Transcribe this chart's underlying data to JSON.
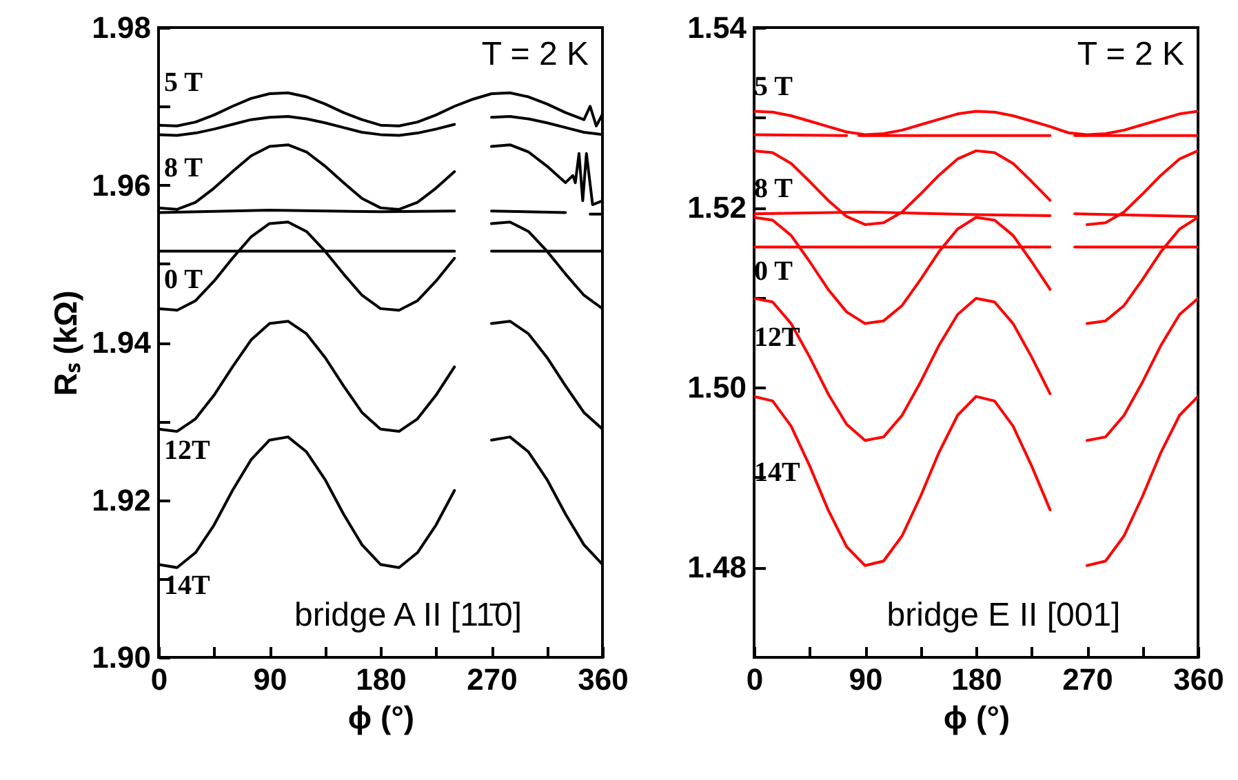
{
  "chart_data": [
    {
      "type": "line",
      "xlabel": "ϕ (°)",
      "ylabel": "Rₛ (kΩ)",
      "xlim": [
        0,
        360
      ],
      "ylim": [
        1.9,
        1.98
      ],
      "xticks": [
        0,
        {
          "value": 45,
          "label": null
        },
        90,
        {
          "value": 135,
          "label": null
        },
        180,
        {
          "value": 225,
          "label": null
        },
        270,
        {
          "value": 315,
          "label": null
        },
        360
      ],
      "yticks": [
        {
          "value": 1.9,
          "label": "1.90"
        },
        {
          "value": 1.91,
          "label": null
        },
        {
          "value": 1.92,
          "label": "1.92"
        },
        {
          "value": 1.93,
          "label": null
        },
        {
          "value": 1.94,
          "label": "1.94"
        },
        {
          "value": 1.95,
          "label": null
        },
        {
          "value": 1.96,
          "label": "1.96"
        },
        {
          "value": 1.97,
          "label": null
        },
        {
          "value": 1.98,
          "label": "1.98"
        }
      ],
      "x": [
        0,
        15,
        30,
        45,
        60,
        75,
        90,
        105,
        120,
        135,
        150,
        165,
        180,
        195,
        210,
        225,
        240,
        255,
        270,
        285,
        300,
        315,
        330,
        345,
        360
      ],
      "series": [
        {
          "color": "#000000",
          "x": [
            0,
            15,
            30,
            45,
            60,
            75,
            90,
            105,
            120,
            135,
            150,
            165,
            180,
            195,
            210,
            225,
            240,
            255,
            270,
            285,
            300,
            315,
            330,
            345,
            350,
            355,
            360
          ],
          "values": [
            1.9676,
            1.9675,
            1.968,
            1.9689,
            1.97,
            1.971,
            1.9716,
            1.9717,
            1.9712,
            1.9703,
            1.9692,
            1.9683,
            1.9676,
            1.9675,
            1.968,
            1.9689,
            1.97,
            1.9709,
            1.9716,
            1.9717,
            1.9712,
            1.9703,
            1.9692,
            1.9683,
            1.97,
            1.9675,
            1.969
          ]
        },
        {
          "color": "#000000",
          "values": [
            1.9664,
            1.9663,
            1.9666,
            1.9671,
            1.9677,
            1.9683,
            1.9686,
            1.9687,
            1.9684,
            1.9679,
            1.9673,
            1.9667,
            1.9664,
            1.9663,
            1.9666,
            1.9671,
            1.9677,
            null,
            1.9686,
            1.9687,
            1.9684,
            1.9679,
            1.9673,
            1.9667,
            1.9664
          ]
        },
        {
          "color": "#000000",
          "x": [
            0,
            15,
            30,
            45,
            60,
            75,
            90,
            105,
            120,
            135,
            150,
            165,
            180,
            195,
            210,
            225,
            240,
            255,
            270,
            285,
            300,
            315,
            330,
            336,
            338,
            341,
            344,
            347,
            352,
            360
          ],
          "values": [
            1.9571,
            1.9569,
            1.9578,
            1.9596,
            1.9617,
            1.9637,
            1.9649,
            1.9651,
            1.9642,
            1.9624,
            1.9603,
            1.9583,
            1.9571,
            1.9569,
            1.9578,
            1.9596,
            1.9617,
            null,
            1.9649,
            1.9651,
            1.9642,
            1.9624,
            1.9603,
            1.9612,
            1.9603,
            1.964,
            1.958,
            1.964,
            1.9575,
            1.958
          ]
        },
        {
          "color": "#000000",
          "x": [
            0,
            90,
            180,
            240,
            255,
            270,
            330,
            345,
            350,
            360
          ],
          "values": [
            1.9565,
            1.9568,
            1.9566,
            1.9567,
            null,
            1.9567,
            1.9565,
            null,
            1.9563,
            1.9563
          ]
        },
        {
          "color": "#000000",
          "x": [
            0,
            240,
            255,
            270,
            360
          ],
          "values": [
            1.9516,
            1.9516,
            null,
            1.9516,
            1.9516
          ]
        },
        {
          "color": "#000000",
          "values": [
            1.9443,
            1.9441,
            1.9453,
            1.9478,
            1.9507,
            1.9534,
            1.9551,
            1.9553,
            1.9541,
            1.9516,
            1.9487,
            1.946,
            1.9443,
            1.9441,
            1.9453,
            1.9478,
            1.9507,
            null,
            1.9551,
            1.9553,
            1.9541,
            1.9516,
            1.9487,
            1.946,
            1.9443
          ]
        },
        {
          "color": "#000000",
          "values": [
            1.929,
            1.9287,
            1.9303,
            1.9333,
            1.9369,
            1.9403,
            1.9424,
            1.9427,
            1.9411,
            1.9381,
            1.9345,
            1.9311,
            1.929,
            1.9287,
            1.9303,
            1.9333,
            1.9369,
            null,
            1.9424,
            1.9427,
            1.9411,
            1.9381,
            1.9345,
            1.9311,
            1.929
          ]
        },
        {
          "color": "#000000",
          "values": [
            1.9118,
            1.9114,
            1.9133,
            1.9168,
            1.9212,
            1.9251,
            1.9276,
            1.928,
            1.9261,
            1.9226,
            1.9182,
            1.9143,
            1.9118,
            1.9114,
            1.9133,
            1.9168,
            1.9212,
            null,
            1.9276,
            1.928,
            1.9261,
            1.9226,
            1.9182,
            1.9143,
            1.9118
          ]
        }
      ],
      "annotations": [
        "5 T",
        "8 T",
        "0 T",
        "12T",
        "14T",
        "T = 2 K",
        "bridge A II [11̄0]"
      ]
    },
    {
      "type": "line",
      "xlabel": "ϕ (°)",
      "xlim": [
        0,
        360
      ],
      "ylim": [
        1.47,
        1.54
      ],
      "xticks": [
        0,
        {
          "value": 45,
          "label": null
        },
        90,
        {
          "value": 135,
          "label": null
        },
        180,
        {
          "value": 225,
          "label": null
        },
        270,
        {
          "value": 315,
          "label": null
        },
        360
      ],
      "yticks": [
        {
          "value": 1.48,
          "label": "1.48"
        },
        {
          "value": 1.49,
          "label": null
        },
        {
          "value": 1.5,
          "label": "1.50"
        },
        {
          "value": 1.51,
          "label": null
        },
        {
          "value": 1.52,
          "label": "1.52"
        },
        {
          "value": 1.53,
          "label": null
        },
        {
          "value": 1.54,
          "label": "1.54"
        }
      ],
      "x": [
        0,
        15,
        30,
        45,
        60,
        75,
        90,
        105,
        120,
        135,
        150,
        165,
        180,
        195,
        210,
        225,
        240,
        255,
        270,
        285,
        300,
        315,
        330,
        345,
        360
      ],
      "series": [
        {
          "color": "#ff0000",
          "values": [
            1.5307,
            1.5306,
            1.5302,
            1.5296,
            1.529,
            1.5284,
            1.5281,
            1.5282,
            1.5286,
            1.5292,
            1.5298,
            1.5304,
            1.5307,
            1.5306,
            1.5302,
            1.5296,
            1.529,
            1.5283,
            1.5281,
            1.5282,
            1.5286,
            1.5292,
            1.5298,
            1.5304,
            1.5307
          ]
        },
        {
          "color": "#ff0000",
          "x": [
            0,
            75,
            80,
            85,
            240,
            255,
            260,
            360
          ],
          "values": [
            1.5281,
            1.528,
            null,
            1.528,
            1.528,
            null,
            1.528,
            1.528
          ]
        },
        {
          "color": "#ff0000",
          "values": [
            1.5263,
            1.5261,
            1.5249,
            1.5229,
            1.5208,
            1.519,
            1.5181,
            1.5183,
            1.5195,
            1.5215,
            1.5236,
            1.5254,
            1.5263,
            1.5261,
            1.5249,
            1.5229,
            1.5208,
            null,
            1.5181,
            1.5183,
            1.5195,
            1.5215,
            1.5236,
            1.5254,
            1.5263
          ]
        },
        {
          "color": "#ff0000",
          "x": [
            0,
            90,
            180,
            240,
            255,
            260,
            360
          ],
          "values": [
            1.5193,
            1.5195,
            1.5192,
            1.5191,
            null,
            1.5193,
            1.519
          ]
        },
        {
          "color": "#ff0000",
          "x": [
            0,
            240,
            255,
            260,
            360
          ],
          "values": [
            1.5156,
            1.5156,
            null,
            1.5156,
            1.5156
          ]
        },
        {
          "color": "#ff0000",
          "values": [
            1.5189,
            1.5186,
            1.5169,
            1.514,
            1.5109,
            1.5084,
            1.5071,
            1.5074,
            1.5091,
            1.512,
            1.5151,
            1.5176,
            1.5189,
            1.5186,
            1.5169,
            1.514,
            1.5109,
            null,
            1.5071,
            1.5074,
            1.5091,
            1.512,
            1.5151,
            1.5176,
            1.5189
          ]
        },
        {
          "color": "#ff0000",
          "values": [
            1.5099,
            1.5095,
            1.5071,
            1.5034,
            1.4993,
            1.4959,
            1.4941,
            1.4945,
            1.4969,
            1.5006,
            1.5047,
            1.5081,
            1.5099,
            1.5095,
            1.5071,
            1.5034,
            1.4993,
            null,
            1.4941,
            1.4945,
            1.4969,
            1.5006,
            1.5047,
            1.5081,
            1.5099
          ]
        },
        {
          "color": "#ff0000",
          "values": [
            1.499,
            1.4985,
            1.4957,
            1.4913,
            1.4864,
            1.4823,
            1.4802,
            1.4807,
            1.4835,
            1.4879,
            1.4928,
            1.4969,
            1.499,
            1.4985,
            1.4957,
            1.4913,
            1.4864,
            null,
            1.4802,
            1.4807,
            1.4835,
            1.4879,
            1.4928,
            1.4969,
            1.499
          ]
        }
      ],
      "annotations": [
        "5 T",
        "8 T",
        "0 T",
        "12T",
        "14T",
        "T = 2 K",
        "bridge E II [001]"
      ]
    }
  ]
}
